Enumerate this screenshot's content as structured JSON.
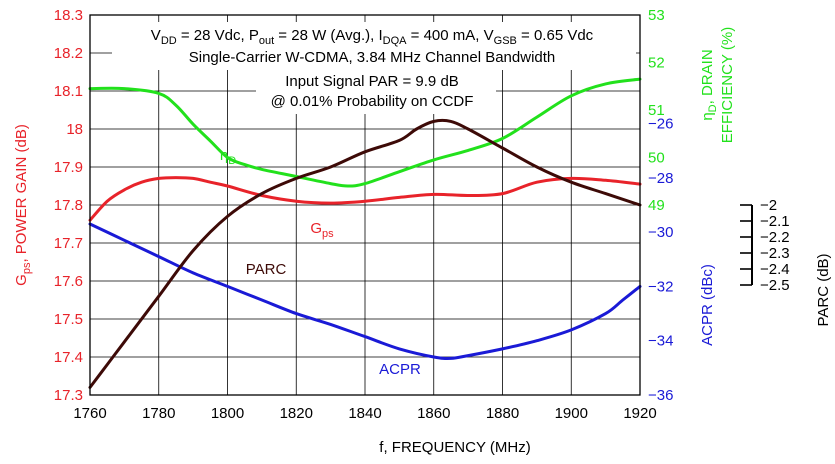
{
  "chart_data": {
    "type": "line",
    "xlabel": "f, FREQUENCY (MHz)",
    "xlim": [
      1760,
      1920
    ],
    "x_ticks": [
      "1760",
      "1780",
      "1800",
      "1820",
      "1840",
      "1860",
      "1880",
      "1900",
      "1920"
    ],
    "grid": true,
    "axes": {
      "gain": {
        "ylim": [
          17.3,
          18.3
        ],
        "ticks": [
          "18.3",
          "18.2",
          "18.1",
          "18",
          "17.9",
          "17.8",
          "17.7",
          "17.6",
          "17.5",
          "17.4",
          "17.3"
        ],
        "color": "#e8232a"
      },
      "efficiency": {
        "ylim": [
          45,
          53
        ],
        "ticks": [
          "53",
          "52",
          "51",
          "50",
          "49"
        ],
        "color": "#22e11c"
      },
      "acpr": {
        "ylim": [
          -36,
          -22
        ],
        "ticks": [
          "−26",
          "−28",
          "−30",
          "−32",
          "−34",
          "−36"
        ],
        "label": "ACPR (dBc)",
        "color": "#1a1ad6"
      },
      "parc": {
        "ylim": [
          -2.5,
          -2.0
        ],
        "ticks": [
          "−2",
          "−2.1",
          "−2.2",
          "−2.3",
          "−2.4",
          "−2.5"
        ],
        "label": "PARC (dB)",
        "color": "#000000"
      }
    },
    "gain_label": {
      "base": "G",
      "sub": "ps",
      "rest": ", POWER GAIN (dB)"
    },
    "eff_label": {
      "line1_pre": "η",
      "line1_sub": "D",
      "line1_post": ", DRAIN",
      "line2": "EFFICIENCY (%)"
    },
    "series": [
      {
        "name": "Gps",
        "axis": "gain",
        "color": "#e8232a",
        "x": [
          1760,
          1765,
          1770,
          1775,
          1780,
          1785,
          1790,
          1795,
          1800,
          1810,
          1820,
          1830,
          1840,
          1850,
          1860,
          1870,
          1880,
          1890,
          1900,
          1910,
          1920
        ],
        "y": [
          17.76,
          17.81,
          17.84,
          17.86,
          17.87,
          17.872,
          17.87,
          17.86,
          17.85,
          17.825,
          17.81,
          17.805,
          17.81,
          17.82,
          17.828,
          17.825,
          17.83,
          17.86,
          17.87,
          17.865,
          17.855
        ]
      },
      {
        "name": "ηD",
        "axis": "efficiency",
        "color": "#22e11c",
        "x": [
          1760,
          1770,
          1780,
          1785,
          1790,
          1795,
          1800,
          1805,
          1810,
          1820,
          1830,
          1835,
          1840,
          1850,
          1860,
          1870,
          1880,
          1890,
          1900,
          1910,
          1920
        ],
        "y": [
          51.45,
          51.45,
          51.35,
          51.1,
          50.7,
          50.35,
          50.0,
          49.85,
          49.75,
          49.6,
          49.45,
          49.4,
          49.45,
          49.7,
          49.95,
          50.15,
          50.4,
          50.85,
          51.3,
          51.55,
          51.65
        ]
      },
      {
        "name": "ACPR",
        "axis": "acpr",
        "color": "#1a1ad6",
        "x": [
          1760,
          1770,
          1780,
          1790,
          1800,
          1810,
          1820,
          1830,
          1840,
          1850,
          1860,
          1865,
          1870,
          1880,
          1890,
          1900,
          1910,
          1915,
          1920
        ],
        "y": [
          -29.7,
          -30.3,
          -30.9,
          -31.5,
          -32.0,
          -32.5,
          -33.0,
          -33.4,
          -33.85,
          -34.3,
          -34.6,
          -34.65,
          -34.55,
          -34.3,
          -34.0,
          -33.6,
          -33.0,
          -32.5,
          -32.0
        ]
      },
      {
        "name": "PARC",
        "axis": "parc",
        "color": "#3d0a07",
        "x": [
          1760,
          1765,
          1770,
          1780,
          1790,
          1800,
          1810,
          1820,
          1830,
          1840,
          1850,
          1855,
          1860,
          1865,
          1870,
          1880,
          1890,
          1900,
          1910,
          1920
        ],
        "y": [
          -2.49,
          -2.46,
          -2.43,
          -2.37,
          -2.31,
          -2.265,
          -2.235,
          -2.215,
          -2.2,
          -2.18,
          -2.165,
          -2.15,
          -2.14,
          -2.14,
          -2.15,
          -2.175,
          -2.2,
          -2.22,
          -2.235,
          -2.25
        ]
      }
    ],
    "curve_labels": [
      {
        "series": "Gps",
        "base": "G",
        "sub": "ps"
      },
      {
        "series": "ηD",
        "base": "η",
        "sub": "D"
      },
      {
        "series": "PARC",
        "text": "PARC"
      },
      {
        "series": "ACPR",
        "text": "ACPR"
      }
    ],
    "annotation": {
      "line1": {
        "a": "V",
        "a_sub": "DD",
        "b": " = 28 Vdc, P",
        "b_sub": "out",
        "c": " = 28 W (Avg.), I",
        "c_sub": "DQA",
        "d": " = 400 mA, V",
        "d_sub": "GSB",
        "e": " = 0.65 Vdc"
      },
      "line2": "Single-Carrier W-CDMA, 3.84 MHz Channel Bandwidth",
      "line3": "Input Signal PAR = 9.9 dB",
      "line4": "@ 0.01% Probability on CCDF"
    }
  }
}
